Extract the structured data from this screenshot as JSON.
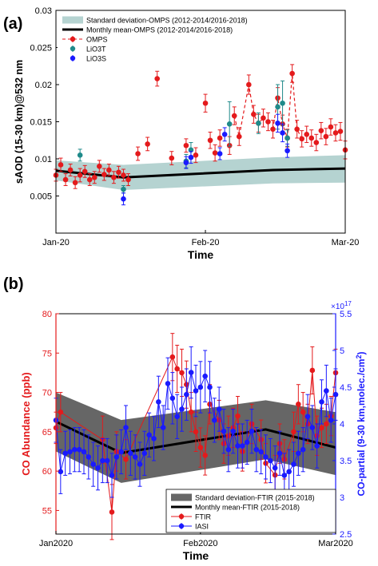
{
  "panel_labels": [
    "(a)",
    "(b)"
  ],
  "chart_data": [
    {
      "type": "line",
      "panel": "(a)",
      "xlabel": "Time",
      "ylabel": "sAOD (15-30 km)@532 nm",
      "xticks": [
        "Jan-20",
        "Feb-20",
        "Mar-20"
      ],
      "xlim": [
        "2020-01-01",
        "2020-03-01"
      ],
      "ylim": [
        0,
        0.03
      ],
      "yticks": [
        0.005,
        0.01,
        0.015,
        0.02,
        0.025,
        0.03
      ],
      "ytick_labels": [
        "0.005",
        "0.01",
        "0.015",
        "0.02",
        "0.025",
        "0.03"
      ],
      "grid": false,
      "legend": "top-left",
      "band": {
        "name": "Standard deviation-OMPS (2012-2014/2016-2018)",
        "color": "#b5d3d1",
        "x": [
          "2020-01-01",
          "2020-01-15",
          "2020-02-15",
          "2020-03-01"
        ],
        "upper": [
          0.0098,
          0.0092,
          0.0102,
          0.0105
        ],
        "lower": [
          0.0071,
          0.0058,
          0.0067,
          0.0068
        ]
      },
      "mean": {
        "name": "Monthly mean-OMPS (2012-2014/2016-2018)",
        "color": "#000000",
        "x": [
          "2020-01-01",
          "2020-01-15",
          "2020-02-15",
          "2020-03-01"
        ],
        "y": [
          0.0084,
          0.0075,
          0.0085,
          0.0087
        ]
      },
      "series": [
        {
          "name": "OMPS",
          "color": "#e41a1c",
          "style": "dashed-points",
          "x": [
            "2020-01-01",
            "2020-01-02",
            "2020-01-03",
            "2020-01-04",
            "2020-01-05",
            "2020-01-06",
            "2020-01-07",
            "2020-01-08",
            "2020-01-09",
            "2020-01-10",
            "2020-01-11",
            "2020-01-12",
            "2020-01-13",
            "2020-01-14",
            "2020-01-15",
            "2020-01-16",
            "2020-01-18",
            "2020-01-20",
            "2020-01-22",
            "2020-01-25",
            "2020-01-28",
            "2020-01-30",
            "2020-02-01",
            "2020-02-02",
            "2020-02-03",
            "2020-02-04",
            "2020-02-06",
            "2020-02-07",
            "2020-02-08",
            "2020-02-10",
            "2020-02-11",
            "2020-02-12",
            "2020-02-13",
            "2020-02-14",
            "2020-02-15",
            "2020-02-16",
            "2020-02-17",
            "2020-02-18",
            "2020-02-19",
            "2020-02-20",
            "2020-02-21",
            "2020-02-22",
            "2020-02-23",
            "2020-02-24",
            "2020-02-25",
            "2020-02-26",
            "2020-02-27",
            "2020-02-28",
            "2020-02-29",
            "2020-03-01"
          ],
          "y": [
            0.0078,
            0.0092,
            0.0072,
            0.0085,
            0.0068,
            0.0078,
            0.0083,
            0.0072,
            0.0075,
            0.009,
            0.0079,
            0.0085,
            0.0075,
            0.0082,
            0.0078,
            0.0072,
            0.0107,
            0.012,
            0.0208,
            0.0101,
            0.0118,
            0.0105,
            0.0175,
            0.0125,
            0.0108,
            0.0128,
            0.0118,
            0.0158,
            0.013,
            0.02,
            0.016,
            0.0148,
            0.0155,
            0.015,
            0.014,
            0.0182,
            0.0147,
            0.0128,
            0.0215,
            0.014,
            0.0127,
            0.0133,
            0.0128,
            0.0122,
            0.0138,
            0.013,
            0.0143,
            0.0135,
            0.0137,
            0.0112
          ],
          "err": [
            0.0008,
            0.0009,
            0.0008,
            0.0008,
            0.0008,
            0.0009,
            0.0008,
            0.0008,
            0.0008,
            0.0008,
            0.0008,
            0.0008,
            0.0008,
            0.0008,
            0.0008,
            0.0008,
            0.0009,
            0.0009,
            0.001,
            0.0009,
            0.0009,
            0.001,
            0.0012,
            0.0011,
            0.0011,
            0.0011,
            0.0012,
            0.0012,
            0.0012,
            0.0013,
            0.0012,
            0.0012,
            0.0012,
            0.0012,
            0.0012,
            0.0014,
            0.0012,
            0.0012,
            0.0012,
            0.0012,
            0.0011,
            0.0011,
            0.0011,
            0.0011,
            0.0011,
            0.0011,
            0.0011,
            0.0011,
            0.0012,
            0.0012
          ],
          "dashed_segments": [
            [
              27,
              32
            ],
            [
              34,
              40
            ]
          ]
        },
        {
          "name": "LiO3T",
          "color": "#1f8a8a",
          "x": [
            "2020-01-06",
            "2020-01-15",
            "2020-01-28",
            "2020-01-29",
            "2020-02-06",
            "2020-02-12",
            "2020-02-16",
            "2020-02-17",
            "2020-02-18"
          ],
          "y": [
            0.0105,
            0.0059,
            0.0097,
            0.0112,
            0.0147,
            0.0148,
            0.017,
            0.0175,
            0.0128
          ],
          "err": [
            0.0008,
            0.0005,
            0.0009,
            0.001,
            0.003,
            0.0014,
            0.003,
            0.003,
            0.0011
          ]
        },
        {
          "name": "LiO3S",
          "color": "#1a1aff",
          "x": [
            "2020-01-15",
            "2020-01-28",
            "2020-01-29",
            "2020-02-04",
            "2020-02-05",
            "2020-02-16",
            "2020-02-17",
            "2020-02-18"
          ],
          "y": [
            0.0046,
            0.0095,
            0.0102,
            0.0107,
            0.0133,
            0.0148,
            0.0135,
            0.0111
          ],
          "err": [
            0.0008,
            0.0008,
            0.0008,
            0.0008,
            0.0009,
            0.0012,
            0.0012,
            0.0009
          ]
        }
      ]
    },
    {
      "type": "line",
      "panel": "(b)",
      "xlabel": "Time",
      "ylabel_left": "CO Abundance (ppb)",
      "ylabel_right": "CO-partial (9-30 km,molec./cm",
      "ylabel_right_sup": "2",
      "ylabel_right_end": ")",
      "y2_exponent_base": "×10",
      "y2_exponent": "17",
      "xticks": [
        "Jan2020",
        "Feb2020",
        "Mar2020"
      ],
      "xlim": [
        "2020-01-01",
        "2020-03-01"
      ],
      "ylim": [
        52,
        80
      ],
      "yticks": [
        55,
        60,
        65,
        70,
        75,
        80
      ],
      "ylim2": [
        2.5,
        5.5
      ],
      "yticks2": [
        2.5,
        3,
        3.5,
        4,
        4.5,
        5,
        5.5
      ],
      "ytick2_labels": [
        "2.5",
        "3",
        "3.5",
        "4",
        "4.5",
        "5",
        "5.5"
      ],
      "left_axis_color": "#e41a1c",
      "right_axis_color": "#1a1aff",
      "grid": false,
      "legend": "bottom-right",
      "band": {
        "name": "Standard deviation-FTIR (2015-2018)",
        "color": "#666666",
        "x": [
          "2020-01-01",
          "2020-01-15",
          "2020-02-15",
          "2020-03-01"
        ],
        "upper": [
          70.0,
          66.5,
          69.0,
          67.5
        ],
        "lower": [
          62.5,
          58.5,
          61.5,
          59.5
        ]
      },
      "mean": {
        "name": "Monthly mean-FTIR (2015-2018)",
        "color": "#000000",
        "x": [
          "2020-01-01",
          "2020-01-15",
          "2020-02-15",
          "2020-03-01"
        ],
        "y": [
          66.3,
          62.3,
          65.3,
          63.0
        ]
      },
      "series": [
        {
          "name": "FTIR",
          "color": "#e41a1c",
          "axis": "left",
          "x": [
            "2020-01-01",
            "2020-01-02",
            "2020-01-11",
            "2020-01-13",
            "2020-01-14",
            "2020-01-16",
            "2020-01-26",
            "2020-01-27",
            "2020-01-28",
            "2020-01-29",
            "2020-01-30",
            "2020-01-31",
            "2020-02-01",
            "2020-02-02",
            "2020-02-03",
            "2020-02-05",
            "2020-02-06",
            "2020-02-07",
            "2020-02-08",
            "2020-02-09",
            "2020-02-10",
            "2020-02-12",
            "2020-02-14",
            "2020-02-15",
            "2020-02-17",
            "2020-02-18",
            "2020-02-19",
            "2020-02-21",
            "2020-02-22",
            "2020-02-23",
            "2020-02-24",
            "2020-02-25",
            "2020-02-26",
            "2020-02-27",
            "2020-02-28",
            "2020-02-29",
            "2020-03-01"
          ],
          "y": [
            65.5,
            67.5,
            64.0,
            54.8,
            62.5,
            61.5,
            74.5,
            73.0,
            72.5,
            71.0,
            67.5,
            65.0,
            63.0,
            62.0,
            68.5,
            66.5,
            63.5,
            64.5,
            65.5,
            67.0,
            62.5,
            66.0,
            64.0,
            61.0,
            59.5,
            63.5,
            61.5,
            65.0,
            68.5,
            67.5,
            66.0,
            72.8,
            64.5,
            65.5,
            66.0,
            67.0,
            72.5
          ],
          "err": [
            2.0,
            2.5,
            3.0,
            3.5,
            2.5,
            2.5,
            3.0,
            3.0,
            3.0,
            3.0,
            2.5,
            2.5,
            2.5,
            2.5,
            2.5,
            2.5,
            2.5,
            2.5,
            2.5,
            2.5,
            2.5,
            2.5,
            2.5,
            2.5,
            2.5,
            2.5,
            2.5,
            2.5,
            2.5,
            2.5,
            2.5,
            3.0,
            2.5,
            2.5,
            2.5,
            2.5,
            3.0
          ]
        },
        {
          "name": "IASI",
          "color": "#1a1aff",
          "axis": "right",
          "x": [
            "2020-01-01",
            "2020-01-02",
            "2020-01-03",
            "2020-01-04",
            "2020-01-05",
            "2020-01-06",
            "2020-01-07",
            "2020-01-08",
            "2020-01-09",
            "2020-01-10",
            "2020-01-11",
            "2020-01-12",
            "2020-01-13",
            "2020-01-14",
            "2020-01-15",
            "2020-01-16",
            "2020-01-17",
            "2020-01-18",
            "2020-01-19",
            "2020-01-20",
            "2020-01-21",
            "2020-01-22",
            "2020-01-23",
            "2020-01-24",
            "2020-01-25",
            "2020-01-26",
            "2020-01-27",
            "2020-01-28",
            "2020-01-29",
            "2020-01-30",
            "2020-01-31",
            "2020-02-01",
            "2020-02-02",
            "2020-02-03",
            "2020-02-04",
            "2020-02-05",
            "2020-02-06",
            "2020-02-07",
            "2020-02-08",
            "2020-02-09",
            "2020-02-10",
            "2020-02-11",
            "2020-02-12",
            "2020-02-13",
            "2020-02-14",
            "2020-02-15",
            "2020-02-16",
            "2020-02-17",
            "2020-02-18",
            "2020-02-19",
            "2020-02-20",
            "2020-02-21",
            "2020-02-22",
            "2020-02-23",
            "2020-02-24",
            "2020-02-25",
            "2020-02-26",
            "2020-02-27",
            "2020-02-28",
            "2020-02-29",
            "2020-03-01"
          ],
          "y": [
            4.05,
            3.35,
            3.6,
            3.62,
            3.65,
            3.65,
            3.62,
            3.55,
            3.45,
            3.4,
            3.5,
            3.5,
            3.3,
            3.55,
            3.62,
            3.95,
            3.6,
            3.55,
            3.45,
            3.6,
            3.85,
            3.8,
            4.3,
            3.95,
            4.55,
            4.35,
            4.1,
            4.2,
            4.4,
            4.7,
            4.45,
            4.5,
            4.65,
            4.5,
            4.05,
            4.2,
            3.9,
            3.65,
            3.9,
            3.7,
            3.7,
            3.75,
            3.9,
            3.65,
            3.62,
            3.55,
            3.5,
            3.4,
            3.6,
            3.3,
            3.35,
            3.45,
            3.6,
            3.65,
            4.1,
            3.95,
            3.7,
            4.3,
            4.45,
            4.05,
            4.4
          ],
          "err": [
            0.3,
            0.3,
            0.3,
            0.3,
            0.3,
            0.3,
            0.3,
            0.3,
            0.3,
            0.3,
            0.3,
            0.3,
            0.3,
            0.3,
            0.3,
            0.3,
            0.3,
            0.3,
            0.3,
            0.3,
            0.3,
            0.3,
            0.35,
            0.3,
            0.35,
            0.35,
            0.3,
            0.3,
            0.35,
            0.35,
            0.35,
            0.35,
            0.35,
            0.35,
            0.3,
            0.3,
            0.3,
            0.3,
            0.3,
            0.3,
            0.3,
            0.3,
            0.3,
            0.3,
            0.3,
            0.3,
            0.3,
            0.3,
            0.3,
            0.3,
            0.3,
            0.3,
            0.3,
            0.3,
            0.3,
            0.3,
            0.3,
            0.3,
            0.35,
            0.3,
            0.35
          ]
        }
      ]
    }
  ]
}
